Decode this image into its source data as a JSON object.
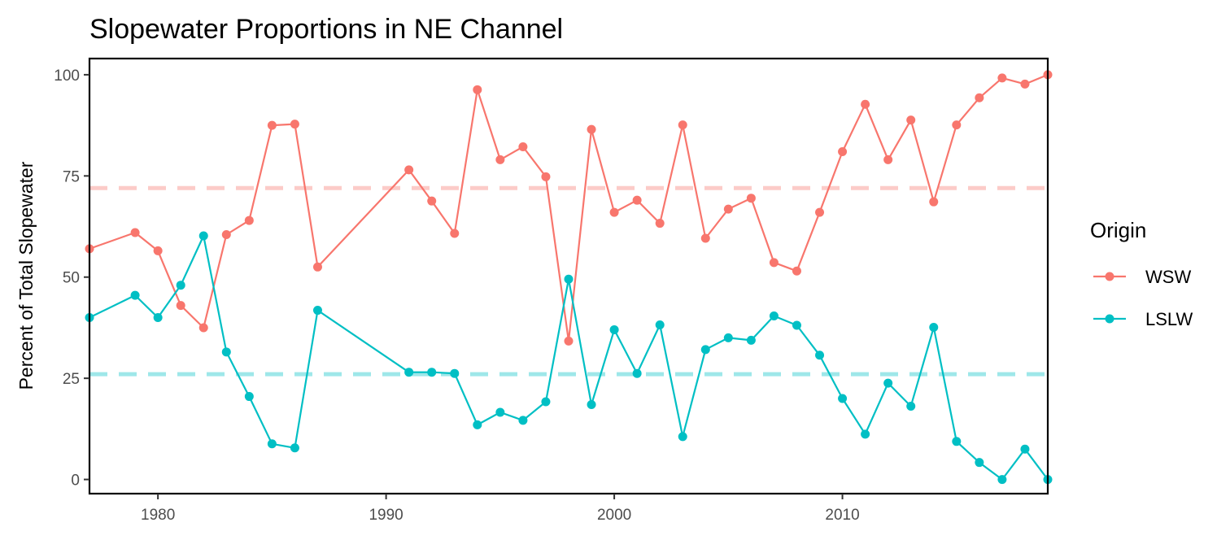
{
  "chart_data": {
    "type": "line",
    "title": "Slopewater Proportions in NE Channel",
    "xlabel": "",
    "ylabel": "Percent of Total Slopewater",
    "xlim": [
      1977,
      2019
    ],
    "ylim": [
      -3.5,
      104
    ],
    "x_ticks": [
      1980,
      1990,
      2000,
      2010
    ],
    "y_ticks": [
      0,
      25,
      50,
      75,
      100
    ],
    "grid": false,
    "legend": {
      "title": "Origin",
      "position": "right"
    },
    "reference_lines": [
      {
        "series": "WSW",
        "y": 72,
        "style": "dashed"
      },
      {
        "series": "LSLW",
        "y": 26,
        "style": "dashed"
      }
    ],
    "series": [
      {
        "name": "WSW",
        "color": "#F8766D",
        "x": [
          1977,
          1979,
          1980,
          1981,
          1982,
          1983,
          1984,
          1985,
          1986,
          1987,
          1991,
          1992,
          1993,
          1994,
          1995,
          1996,
          1997,
          1998,
          1999,
          2000,
          2001,
          2002,
          2003,
          2004,
          2005,
          2006,
          2007,
          2008,
          2009,
          2010,
          2011,
          2012,
          2013,
          2014,
          2015,
          2016,
          2017,
          2018,
          2019
        ],
        "y": [
          57,
          61,
          56.5,
          43,
          37.5,
          60.5,
          64,
          87.5,
          87.8,
          52.5,
          76.5,
          68.8,
          60.8,
          96.3,
          79,
          82.2,
          74.8,
          34.2,
          86.5,
          66,
          69,
          63.3,
          87.6,
          59.6,
          66.8,
          69.5,
          53.6,
          51.5,
          66,
          81,
          92.7,
          79,
          88.8,
          68.6,
          87.6,
          94.3,
          99.2,
          97.7,
          100
        ]
      },
      {
        "name": "LSLW",
        "color": "#00BFC4",
        "x": [
          1977,
          1979,
          1980,
          1981,
          1982,
          1983,
          1984,
          1985,
          1986,
          1987,
          1991,
          1992,
          1993,
          1994,
          1995,
          1996,
          1997,
          1998,
          1999,
          2000,
          2001,
          2002,
          2003,
          2004,
          2005,
          2006,
          2007,
          2008,
          2009,
          2010,
          2011,
          2012,
          2013,
          2014,
          2015,
          2016,
          2017,
          2018,
          2019
        ],
        "y": [
          40,
          45.5,
          40,
          48,
          60.2,
          31.5,
          20.5,
          8.8,
          7.8,
          41.8,
          26.5,
          26.5,
          26.2,
          13.5,
          16.6,
          14.6,
          19.2,
          49.5,
          18.5,
          37,
          26.2,
          38.2,
          10.6,
          32.1,
          35,
          34.4,
          40.4,
          38.1,
          30.7,
          20,
          11.2,
          23.8,
          18.1,
          37.6,
          9.4,
          4.2,
          0,
          7.5,
          0
        ]
      }
    ]
  }
}
